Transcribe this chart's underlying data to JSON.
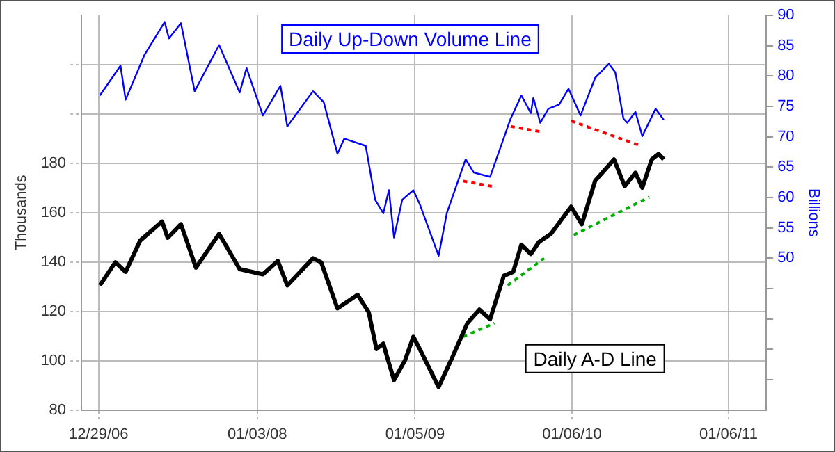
{
  "chart_data": {
    "type": "line",
    "ylabel": "Thousands",
    "y2label": "Billions",
    "xlim": [
      "2006-11-19",
      "2011-04-04"
    ],
    "xticks": [
      {
        "value": "2006-12-29",
        "label": "12/29/06"
      },
      {
        "value": "2008-01-03",
        "label": "01/03/08"
      },
      {
        "value": "2009-01-05",
        "label": "01/05/09"
      },
      {
        "value": "2010-01-06",
        "label": "01/06/10"
      },
      {
        "value": "2011-01-06",
        "label": "01/06/11"
      }
    ],
    "ylim": [
      80,
      240
    ],
    "yticks": [
      80,
      100,
      120,
      140,
      160,
      180,
      {
        "value": 200,
        "label": null
      },
      {
        "value": 220,
        "label": null
      }
    ],
    "y2lim": [
      25,
      90
    ],
    "y2ticks": [
      {
        "value": 30,
        "label": null
      },
      {
        "value": 35,
        "label": null
      },
      {
        "value": 40,
        "label": null
      },
      {
        "value": 45,
        "label": null
      },
      50,
      55,
      60,
      65,
      70,
      75,
      80,
      85,
      90
    ],
    "grid": true,
    "marker": "none",
    "series": [
      {
        "name": "Daily Up-Down Volume Line",
        "color": "#0000ff",
        "axis": "y2",
        "line_style": "solid",
        "x": [
          "2007-01-01",
          "2007-02-18",
          "2007-03-02",
          "2007-04-15",
          "2007-06-01",
          "2007-06-11",
          "2007-07-09",
          "2007-08-10",
          "2007-10-06",
          "2007-11-23",
          "2007-12-09",
          "2008-01-16",
          "2008-02-26",
          "2008-03-13",
          "2008-05-12",
          "2008-06-06",
          "2008-07-08",
          "2008-07-24",
          "2008-09-12",
          "2008-10-04",
          "2008-10-23",
          "2008-11-05",
          "2008-11-17",
          "2008-12-06",
          "2009-01-01",
          "2009-01-16",
          "2009-03-01",
          "2009-03-20",
          "2009-05-03",
          "2009-05-22",
          "2009-06-29",
          "2009-08-16",
          "2009-09-10",
          "2009-10-02",
          "2009-10-08",
          "2009-10-24",
          "2009-11-12",
          "2009-12-07",
          "2009-12-29",
          "2010-01-26",
          "2010-03-01",
          "2010-04-02",
          "2010-04-17",
          "2010-05-06",
          "2010-05-15",
          "2010-06-03",
          "2010-06-19",
          "2010-07-20",
          "2010-08-08"
        ],
        "values": [
          76.8,
          81.7,
          76.1,
          83.5,
          88.9,
          86.2,
          88.7,
          77.5,
          85.1,
          77.3,
          81.3,
          73.5,
          78.4,
          71.7,
          77.5,
          75.7,
          67.2,
          69.7,
          68.5,
          59.6,
          57.4,
          61.2,
          53.4,
          59.6,
          61.2,
          58.9,
          50.4,
          57.4,
          66.3,
          64.1,
          63.4,
          73.0,
          76.8,
          73.9,
          76.4,
          72.3,
          74.6,
          75.3,
          77.9,
          73.5,
          79.7,
          82.0,
          80.6,
          73.0,
          72.3,
          74.1,
          70.1,
          74.6,
          72.8
        ]
      },
      {
        "name": "Daily A-D Line",
        "color": "#000000",
        "axis": "y",
        "line_style": "solid",
        "x": [
          "2007-01-01",
          "2007-02-06",
          "2007-03-02",
          "2007-04-05",
          "2007-05-26",
          "2007-06-08",
          "2007-07-09",
          "2007-08-13",
          "2007-10-06",
          "2007-11-23",
          "2008-01-16",
          "2008-02-20",
          "2008-03-13",
          "2008-05-12",
          "2008-05-31",
          "2008-07-08",
          "2008-08-24",
          "2008-09-19",
          "2008-10-07",
          "2008-10-23",
          "2008-11-01",
          "2008-11-17",
          "2008-12-13",
          "2009-01-01",
          "2009-01-16",
          "2009-03-01",
          "2009-04-02",
          "2009-05-07",
          "2009-06-04",
          "2009-06-29",
          "2009-07-31",
          "2009-08-22",
          "2009-09-10",
          "2009-10-02",
          "2009-10-21",
          "2009-11-18",
          "2010-01-04",
          "2010-01-29",
          "2010-03-01",
          "2010-04-14",
          "2010-05-09",
          "2010-06-03",
          "2010-06-19",
          "2010-07-11",
          "2010-07-27",
          "2010-08-08"
        ],
        "values": [
          130.5,
          139.9,
          136.0,
          148.7,
          156.4,
          149.8,
          155.3,
          137.7,
          151.4,
          137.1,
          135.0,
          140.4,
          130.5,
          141.5,
          139.9,
          121.2,
          126.7,
          119.6,
          104.7,
          106.9,
          101.4,
          92.1,
          100.3,
          109.7,
          104.7,
          89.3,
          101.4,
          115.2,
          120.7,
          116.8,
          134.4,
          136.0,
          147.0,
          143.2,
          148.1,
          151.4,
          162.4,
          155.3,
          172.9,
          181.6,
          170.7,
          176.2,
          170.1,
          181.6,
          183.8,
          181.6
        ]
      },
      {
        "color": "#ff0000",
        "axis": "y2",
        "line_style": "dashed",
        "x": [
          "2009-04-27",
          "2009-07-06"
        ],
        "values": [
          62.7,
          61.8
        ]
      },
      {
        "color": "#ff0000",
        "axis": "y2",
        "line_style": "dashed",
        "x": [
          "2009-08-16",
          "2009-10-27"
        ],
        "values": [
          71.7,
          70.8
        ]
      },
      {
        "color": "#ff0000",
        "axis": "y2",
        "line_style": "dashed",
        "x": [
          "2010-01-04",
          "2010-06-16"
        ],
        "values": [
          72.6,
          68.5
        ]
      },
      {
        "color": "#00b000",
        "axis": "y",
        "line_style": "dashed",
        "x": [
          "2009-04-27",
          "2009-07-09"
        ],
        "values": [
          109.7,
          115.2
        ]
      },
      {
        "color": "#00b000",
        "axis": "y",
        "line_style": "dashed",
        "x": [
          "2009-08-09",
          "2009-11-02"
        ],
        "values": [
          130.5,
          141.5
        ]
      },
      {
        "color": "#00b000",
        "axis": "y",
        "line_style": "dashed",
        "x": [
          "2010-01-10",
          "2010-07-05"
        ],
        "values": [
          150.9,
          166.3
        ]
      }
    ]
  }
}
